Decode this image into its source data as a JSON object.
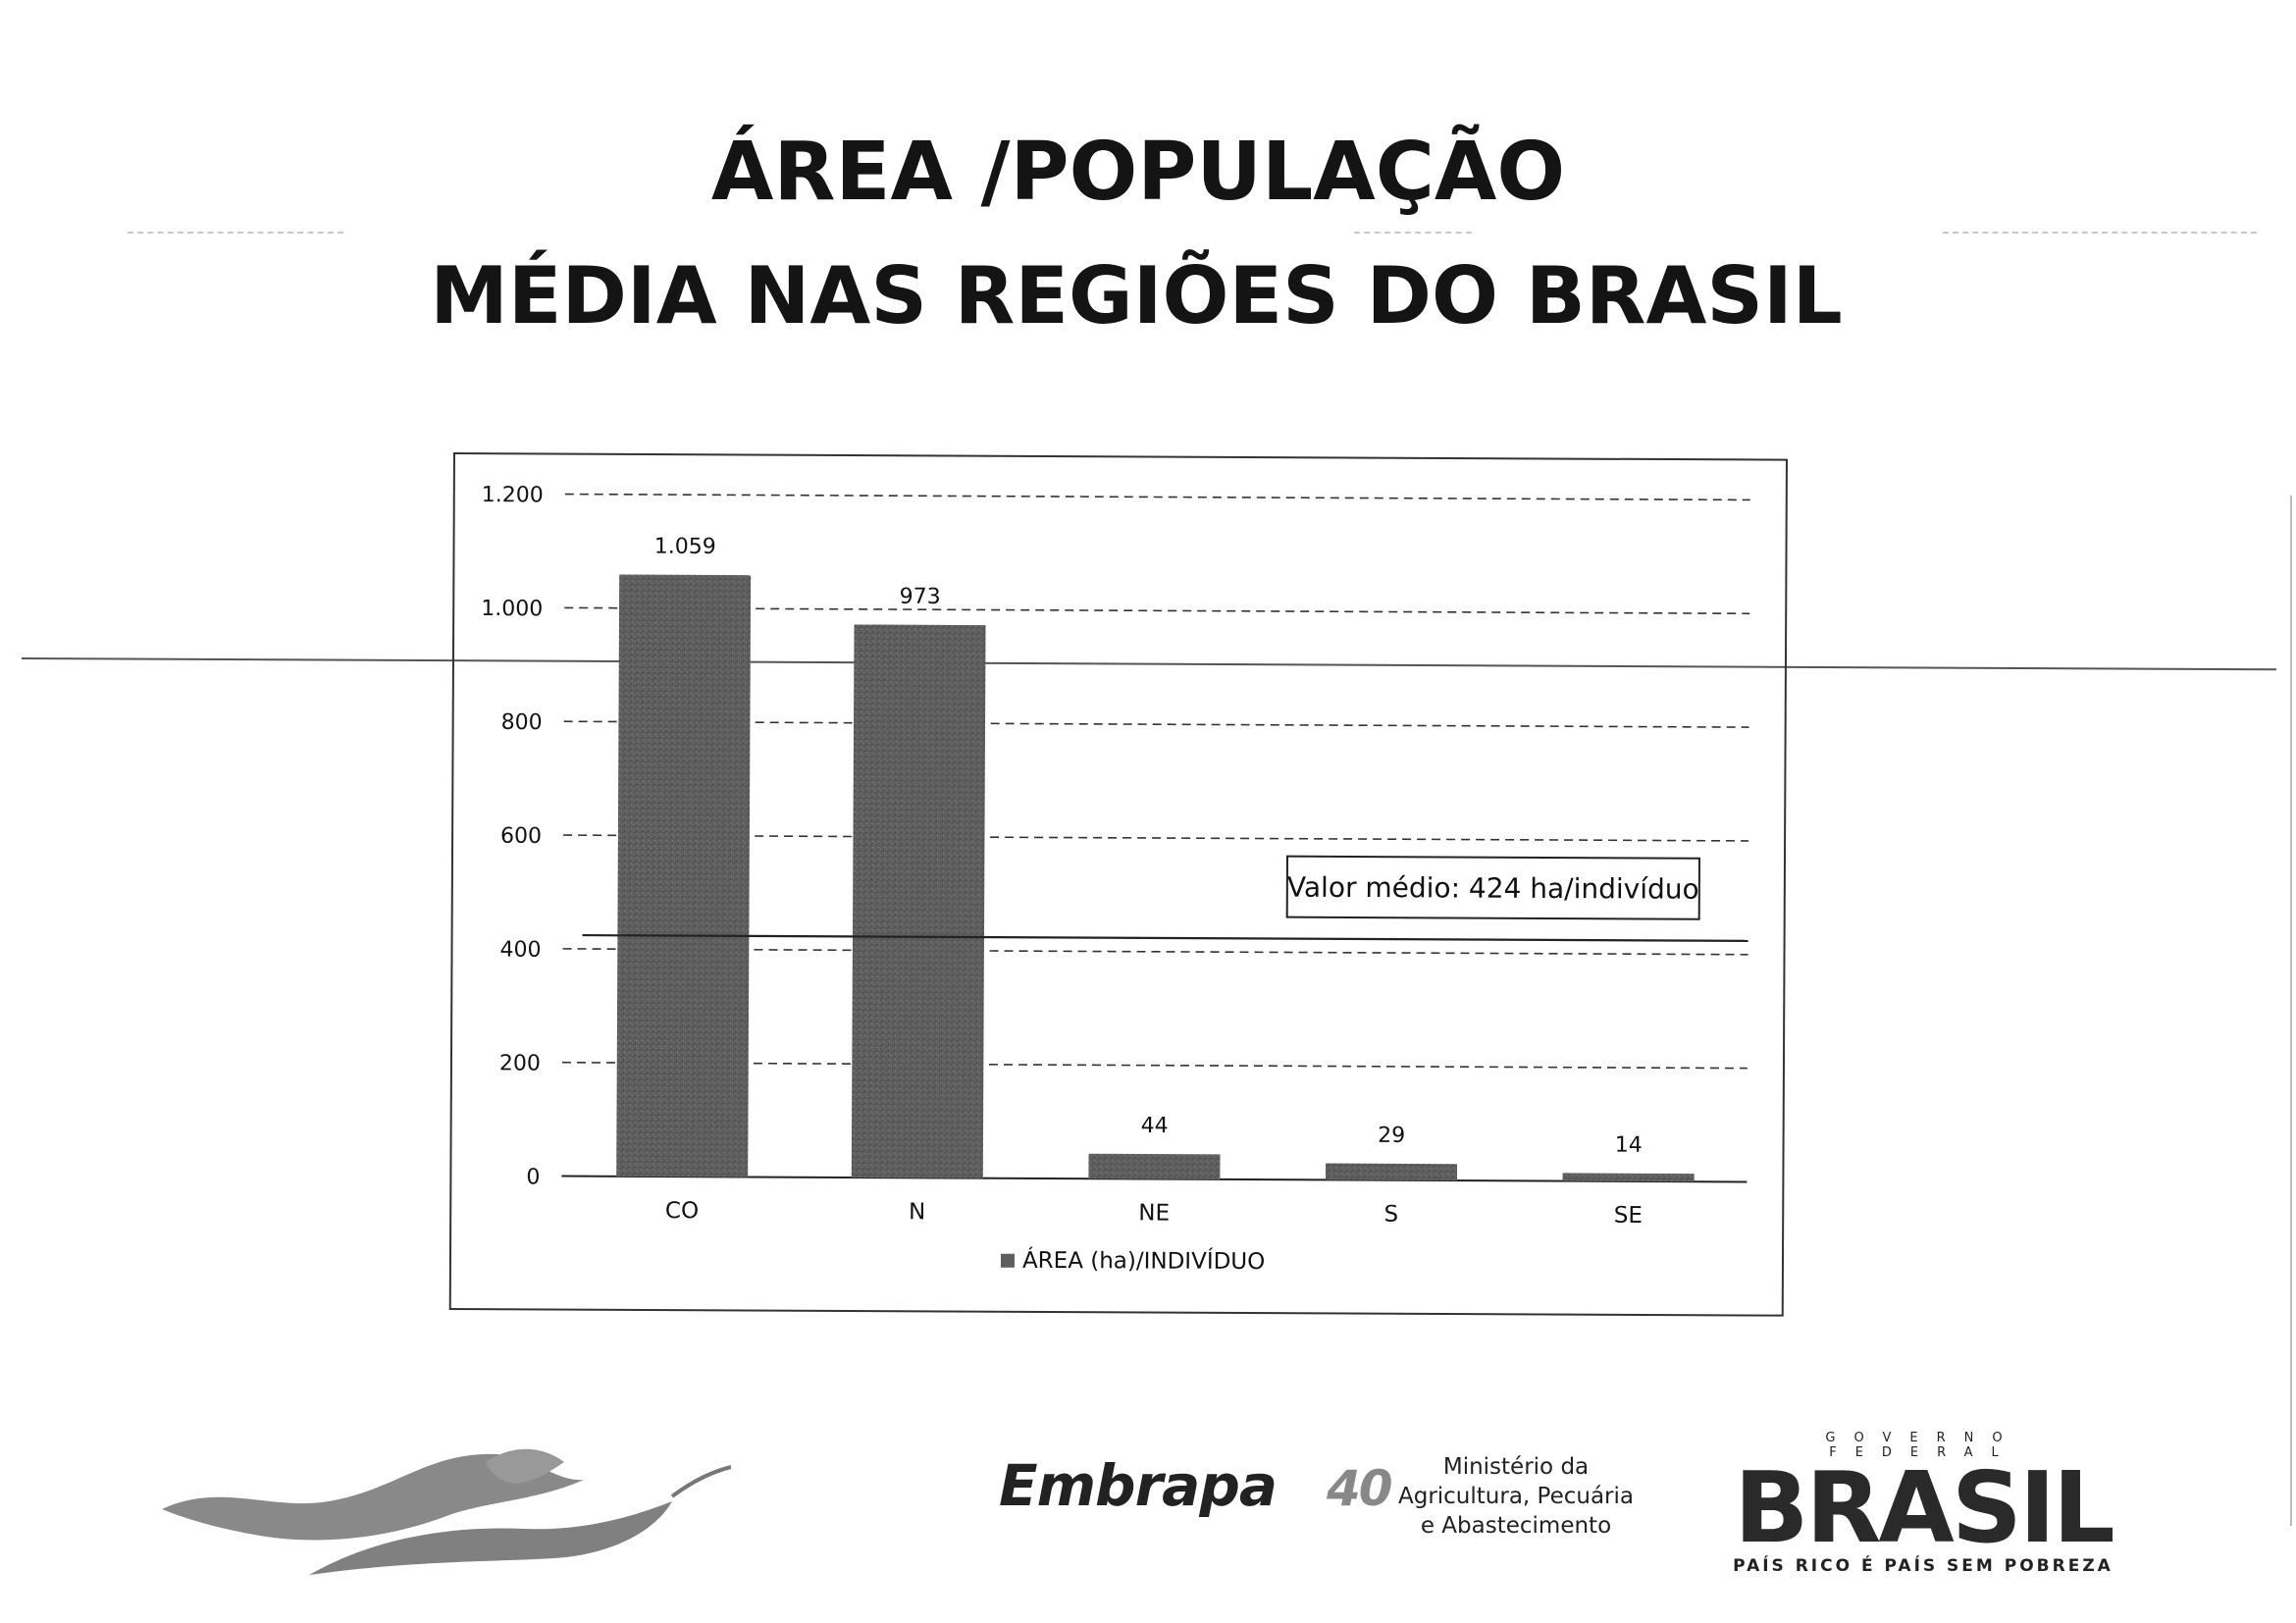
{
  "page": {
    "title_line1": "ÁREA /POPULAÇÃO",
    "title_line2": "MÉDIA NAS REGIÕES DO BRASIL"
  },
  "chart_data": {
    "type": "bar",
    "categories": [
      "CO",
      "N",
      "NE",
      "S",
      "SE"
    ],
    "series": [
      {
        "name": "ÁREA (ha)/INDIVÍDUO",
        "values": [
          1059,
          973,
          44,
          29,
          14
        ]
      }
    ],
    "data_labels": [
      "1.059",
      "973",
      "44",
      "29",
      "14"
    ],
    "ylim": [
      0,
      1200
    ],
    "yticks": [
      0,
      200,
      400,
      600,
      800,
      1000,
      1200
    ],
    "ytick_labels": [
      "0",
      "200",
      "400",
      "600",
      "800",
      "1.000",
      "1.200"
    ],
    "grid": true,
    "legend": "bottom",
    "average_line": {
      "value": 424,
      "label": "Valor médio: 424 ha/indivíduo"
    },
    "colors": {
      "bar": "#5e5e5e",
      "grid": "#333333",
      "average": "#222222"
    }
  },
  "logos": {
    "embrapa": "Embrapa",
    "embrapa_anniversary": "40",
    "ministerio_lines": [
      "Ministério da",
      "Agricultura, Pecuária",
      "e Abastecimento"
    ],
    "gov_label": "GOVERNO FEDERAL",
    "brasil": "BRASIL",
    "slogan": "PAÍS RICO É PAÍS SEM POBREZA",
    "left_logo_icon": "wave-flag-icon"
  }
}
